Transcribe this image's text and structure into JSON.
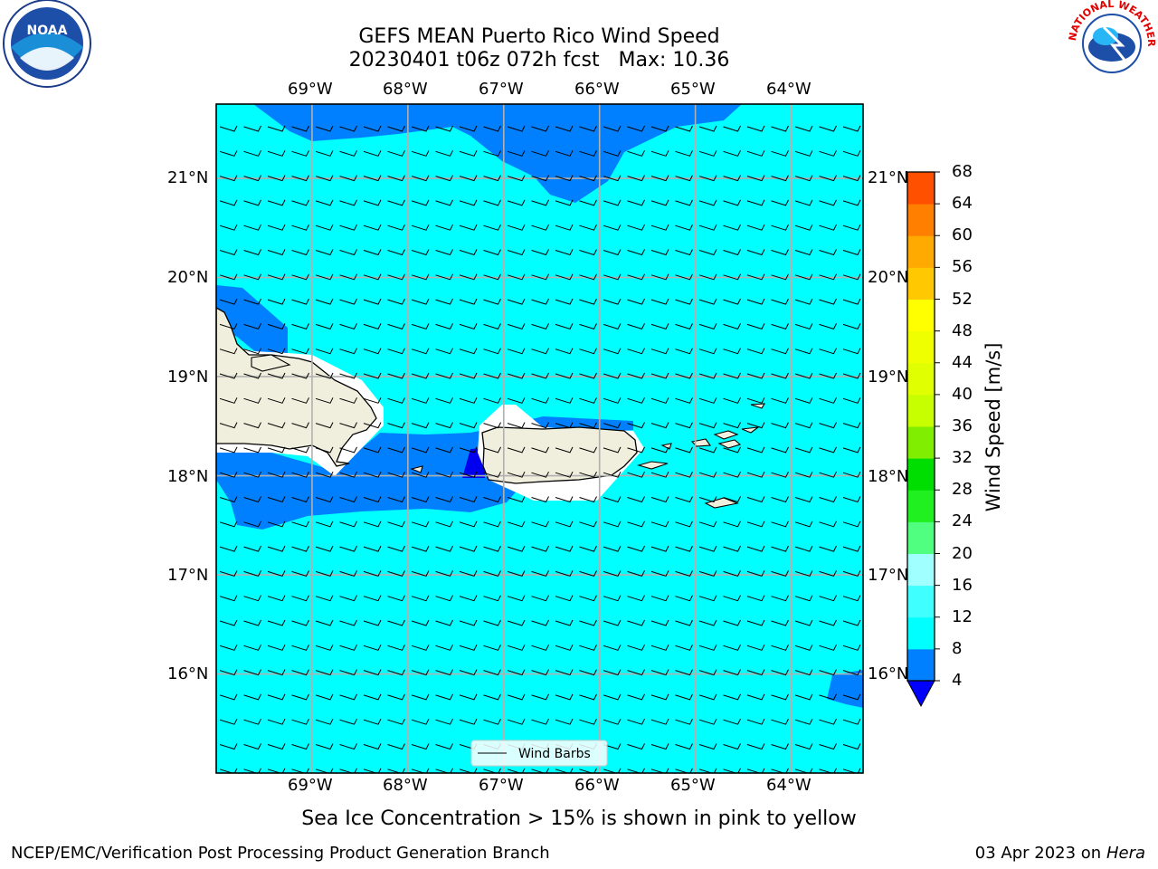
{
  "title": {
    "line1": "GEFS MEAN Puerto Rico Wind Speed",
    "line2": "20230401 t06z 072h fcst   Max: 10.36"
  },
  "map": {
    "lon_range": [
      -70,
      -63.25
    ],
    "lat_range": [
      15,
      21.75
    ],
    "lon_ticks": [
      "69°W",
      "68°W",
      "67°W",
      "66°W",
      "65°W",
      "64°W"
    ],
    "lat_ticks": [
      "21°N",
      "20°N",
      "19°N",
      "18°N",
      "17°N",
      "16°N"
    ],
    "colors": {
      "sea_fill": "#00ffff",
      "band_4_8": "#0080ff",
      "band_lt4": "#0000ee",
      "land": "#f0eedc",
      "grid": "#b0b0b0"
    },
    "legend_label": "Wind Barbs"
  },
  "colorbar": {
    "label": "Wind Speed [m/s]",
    "ticks": [
      "4",
      "8",
      "12",
      "16",
      "20",
      "24",
      "28",
      "32",
      "36",
      "40",
      "44",
      "48",
      "52",
      "56",
      "60",
      "64",
      "68"
    ],
    "colors": [
      "#0080ff",
      "#00ffff",
      "#40ffff",
      "#a0ffff",
      "#50ff80",
      "#20f020",
      "#00dd00",
      "#80ee00",
      "#c8ff00",
      "#e0ff00",
      "#f0ff00",
      "#ffff00",
      "#ffc800",
      "#ffaa00",
      "#ff8000",
      "#ff5000",
      "#ff2800",
      "#ff0000"
    ],
    "under_color": "#0000ff"
  },
  "note": "Sea Ice Concentration > 15% is shown in pink to yellow",
  "footer": {
    "left": "NCEP/EMC/Verification Post Processing Product Generation Branch",
    "date": "03 Apr 2023 on ",
    "machine": "Hera"
  },
  "logos": {
    "noaa_text": "NOAA",
    "nws_text": "NATIONAL WEATHER SERVICE"
  }
}
